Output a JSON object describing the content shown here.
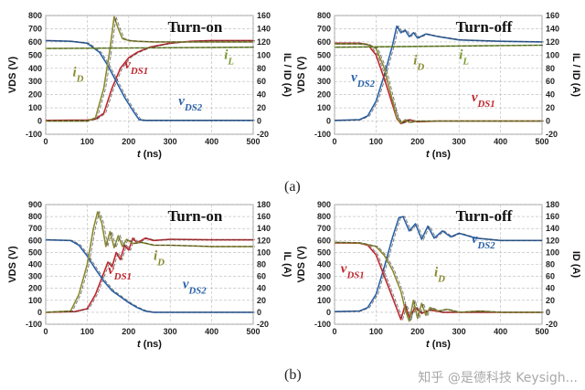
{
  "figure_labels": {
    "a": "(a)",
    "b": "(b)"
  },
  "watermark": "知乎 @是德科技 Keysigh...",
  "chart_data": [
    {
      "type": "line",
      "title": "Turn-on",
      "xlabel": "t (ns)",
      "ylabel_left": "VDS (V)",
      "ylabel_right": "IL / ID (A)",
      "xlim": [
        0,
        500
      ],
      "ylim_left": [
        -100,
        800
      ],
      "ylim_right": [
        -20,
        160
      ],
      "xticks": [
        0,
        100,
        200,
        300,
        400,
        500
      ],
      "yticks_left": [
        -100,
        0,
        100,
        200,
        300,
        400,
        500,
        600,
        700,
        800
      ],
      "yticks_right": [
        -20,
        0,
        20,
        40,
        60,
        80,
        100,
        120,
        140,
        160
      ],
      "grid": true,
      "series": [
        {
          "name": "vDS1",
          "axis": "left",
          "color": "#c0272d",
          "label_pos": [
            190,
            400
          ],
          "x": [
            0,
            100,
            120,
            140,
            160,
            180,
            200,
            220,
            250,
            300,
            350,
            400,
            500
          ],
          "y": [
            5,
            8,
            15,
            60,
            250,
            400,
            480,
            520,
            560,
            590,
            605,
            610,
            610
          ]
        },
        {
          "name": "vDS2",
          "axis": "left",
          "color": "#2a62a8",
          "label_pos": [
            320,
            120
          ],
          "x": [
            0,
            60,
            100,
            130,
            150,
            170,
            190,
            210,
            225,
            240,
            300,
            400,
            500
          ],
          "y": [
            610,
            605,
            590,
            520,
            420,
            300,
            180,
            80,
            10,
            5,
            5,
            5,
            5
          ]
        },
        {
          "name": "iD",
          "axis": "right",
          "color": "#8a8a30",
          "label_pos": [
            65,
            340
          ],
          "x": [
            0,
            100,
            120,
            140,
            155,
            165,
            175,
            185,
            200,
            220,
            260,
            300,
            400,
            500
          ],
          "y": [
            0,
            0,
            5,
            50,
            110,
            158,
            140,
            125,
            122,
            121,
            120,
            120,
            120,
            120
          ]
        },
        {
          "name": "iL",
          "axis": "right",
          "color": "#7a9a30",
          "label_pos": [
            430,
            470
          ],
          "x": [
            0,
            500
          ],
          "y": [
            110,
            112
          ]
        }
      ]
    },
    {
      "type": "line",
      "title": "Turn-off",
      "xlabel": "t (ns)",
      "ylabel_left": "VDS (V)",
      "ylabel_right": "IL / ID (A)",
      "xlim": [
        0,
        500
      ],
      "ylim_left": [
        -100,
        800
      ],
      "ylim_right": [
        -20,
        160
      ],
      "xticks": [
        0,
        100,
        200,
        300,
        400,
        500
      ],
      "yticks_left": [
        -100,
        0,
        100,
        200,
        300,
        400,
        500,
        600,
        700,
        800
      ],
      "yticks_right": [
        -20,
        0,
        20,
        40,
        60,
        80,
        100,
        120,
        140,
        160
      ],
      "grid": true,
      "series": [
        {
          "name": "vDS2",
          "axis": "left",
          "color": "#2a62a8",
          "label_pos": [
            40,
            300
          ],
          "x": [
            0,
            60,
            80,
            100,
            120,
            140,
            150,
            160,
            170,
            180,
            190,
            200,
            220,
            250,
            300,
            400,
            500
          ],
          "y": [
            5,
            10,
            40,
            150,
            350,
            580,
            720,
            670,
            690,
            640,
            670,
            630,
            660,
            640,
            615,
            605,
            600
          ]
        },
        {
          "name": "vDS1",
          "axis": "left",
          "color": "#c0272d",
          "label_pos": [
            330,
            150
          ],
          "x": [
            0,
            60,
            80,
            100,
            120,
            140,
            150,
            160,
            180,
            200,
            250,
            300,
            500
          ],
          "y": [
            590,
            590,
            580,
            500,
            320,
            120,
            20,
            -20,
            10,
            -5,
            0,
            0,
            0
          ]
        },
        {
          "name": "iD",
          "axis": "right",
          "color": "#8a8a30",
          "label_pos": [
            190,
            430
          ],
          "x": [
            0,
            60,
            80,
            100,
            120,
            140,
            150,
            160,
            170,
            180,
            200,
            250,
            300,
            500
          ],
          "y": [
            117,
            117,
            116,
            110,
            80,
            30,
            5,
            -3,
            2,
            -2,
            0,
            0,
            0,
            0
          ]
        },
        {
          "name": "iL",
          "axis": "right",
          "color": "#7a9a30",
          "label_pos": [
            300,
            470
          ],
          "x": [
            0,
            500
          ],
          "y": [
            112,
            115
          ]
        }
      ]
    },
    {
      "type": "line",
      "title": "Turn-on",
      "xlabel": "t (ns)",
      "ylabel_left": "VDS (V)",
      "ylabel_right": "IL (A)",
      "xlim": [
        0,
        500
      ],
      "ylim_left": [
        -100,
        900
      ],
      "ylim_right": [
        -20,
        180
      ],
      "xticks": [
        0,
        100,
        200,
        300,
        400,
        500
      ],
      "yticks_left": [
        -100,
        0,
        100,
        200,
        300,
        400,
        500,
        600,
        700,
        800,
        900
      ],
      "yticks_right": [
        -20,
        0,
        20,
        40,
        60,
        80,
        100,
        120,
        140,
        160,
        180
      ],
      "grid": true,
      "series": [
        {
          "name": "vDS1",
          "axis": "left",
          "color": "#c0272d",
          "label_pos": [
            150,
            320
          ],
          "x": [
            0,
            70,
            100,
            120,
            140,
            150,
            160,
            170,
            180,
            190,
            200,
            210,
            220,
            240,
            260,
            300,
            400,
            500
          ],
          "y": [
            0,
            5,
            30,
            150,
            330,
            420,
            380,
            500,
            440,
            560,
            520,
            620,
            580,
            620,
            600,
            610,
            605,
            605
          ]
        },
        {
          "name": "vDS2",
          "axis": "left",
          "color": "#2a62a8",
          "label_pos": [
            330,
            200
          ],
          "x": [
            0,
            60,
            80,
            100,
            120,
            140,
            160,
            180,
            200,
            220,
            240,
            260,
            300,
            400,
            500
          ],
          "y": [
            605,
            600,
            560,
            470,
            360,
            260,
            180,
            130,
            80,
            40,
            10,
            0,
            0,
            0,
            0
          ]
        },
        {
          "name": "iD",
          "axis": "right",
          "color": "#8a8a30",
          "label_pos": [
            260,
            440
          ],
          "x": [
            0,
            60,
            80,
            100,
            115,
            125,
            135,
            145,
            155,
            165,
            175,
            185,
            195,
            210,
            230,
            260,
            300,
            400,
            500
          ],
          "y": [
            0,
            2,
            30,
            80,
            140,
            168,
            150,
            110,
            135,
            108,
            128,
            110,
            122,
            115,
            117,
            112,
            112,
            110,
            110
          ]
        }
      ]
    },
    {
      "type": "line",
      "title": "Turn-off",
      "xlabel": "t (ns)",
      "ylabel_left": "VDS (V)",
      "ylabel_right": "ID (A)",
      "xlim": [
        0,
        500
      ],
      "ylim_left": [
        -100,
        900
      ],
      "ylim_right": [
        -20,
        180
      ],
      "xticks": [
        0,
        100,
        200,
        300,
        400,
        500
      ],
      "yticks_left": [
        -100,
        0,
        100,
        200,
        300,
        400,
        500,
        600,
        700,
        800,
        900
      ],
      "yticks_right": [
        -20,
        0,
        20,
        40,
        60,
        80,
        100,
        120,
        140,
        160,
        180
      ],
      "grid": true,
      "series": [
        {
          "name": "vDS2",
          "axis": "left",
          "color": "#2a62a8",
          "label_pos": [
            330,
            580
          ],
          "x": [
            0,
            60,
            80,
            100,
            120,
            140,
            155,
            165,
            180,
            195,
            210,
            225,
            240,
            260,
            280,
            300,
            340,
            400,
            500
          ],
          "y": [
            5,
            10,
            40,
            150,
            380,
            630,
            790,
            800,
            680,
            740,
            610,
            720,
            620,
            680,
            630,
            660,
            620,
            600,
            600
          ]
        },
        {
          "name": "vDS1",
          "axis": "left",
          "color": "#c0272d",
          "label_pos": [
            15,
            330
          ],
          "x": [
            0,
            60,
            80,
            100,
            120,
            140,
            150,
            160,
            170,
            180,
            195,
            210,
            230,
            260,
            300,
            500
          ],
          "y": [
            580,
            578,
            560,
            480,
            300,
            120,
            30,
            -60,
            60,
            -40,
            40,
            -10,
            20,
            0,
            0,
            0
          ]
        },
        {
          "name": "iD",
          "axis": "right",
          "color": "#8a8a30",
          "label_pos": [
            240,
            300
          ],
          "x": [
            0,
            60,
            100,
            120,
            140,
            160,
            170,
            180,
            190,
            200,
            210,
            220,
            230,
            250,
            270,
            300,
            350,
            400,
            500
          ],
          "y": [
            117,
            116,
            110,
            95,
            70,
            35,
            5,
            -15,
            20,
            -10,
            15,
            -5,
            8,
            2,
            5,
            0,
            2,
            0,
            0
          ]
        }
      ]
    }
  ]
}
